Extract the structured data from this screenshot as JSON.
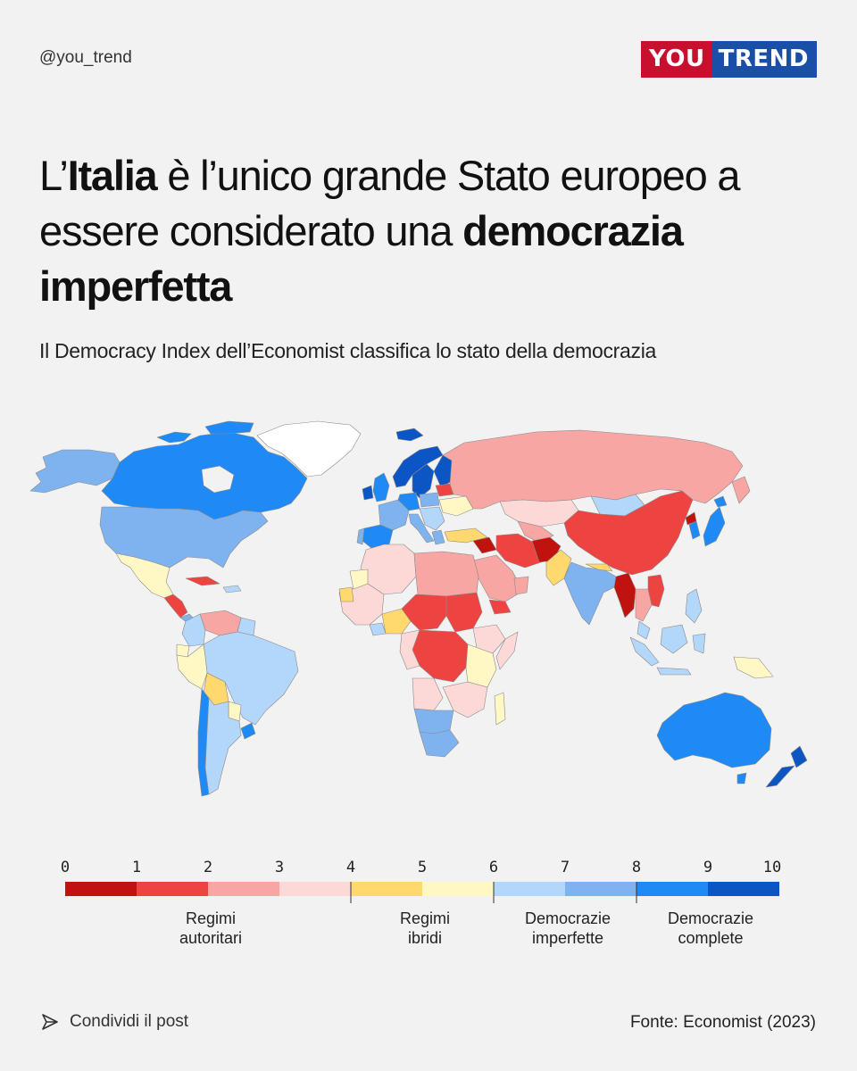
{
  "header": {
    "handle": "@you_trend",
    "logo_left": "YOU",
    "logo_right": "TREND"
  },
  "headline": {
    "part1": "L’",
    "part2": "Italia",
    "part3": " è l’unico grande Stato europeo a essere considerato una ",
    "part4": "democrazia imperfetta"
  },
  "subtitle": "Il Democracy Index dell’Economist classifica lo stato della democrazia",
  "legend": {
    "ticks": [
      "0",
      "1",
      "2",
      "3",
      "4",
      "5",
      "6",
      "7",
      "8",
      "9",
      "10"
    ],
    "bins": [
      {
        "from": 0,
        "to": 1,
        "color": "#c0120f"
      },
      {
        "from": 1,
        "to": 2,
        "color": "#ee4441"
      },
      {
        "from": 2,
        "to": 3,
        "color": "#f8a6a4"
      },
      {
        "from": 3,
        "to": 4,
        "color": "#fcd8d7"
      },
      {
        "from": 4,
        "to": 5,
        "color": "#ffd86e"
      },
      {
        "from": 5,
        "to": 6,
        "color": "#fff8c4"
      },
      {
        "from": 6,
        "to": 7,
        "color": "#b3d6fb"
      },
      {
        "from": 7,
        "to": 8,
        "color": "#7fb3ef"
      },
      {
        "from": 8,
        "to": 9,
        "color": "#1f8af5"
      },
      {
        "from": 9,
        "to": 10,
        "color": "#0b55c4"
      }
    ],
    "categories": [
      {
        "line1": "Regimi",
        "line2": "autoritari"
      },
      {
        "line1": "Regimi",
        "line2": "ibridi"
      },
      {
        "line1": "Democrazie",
        "line2": "imperfette"
      },
      {
        "line1": "Democrazie",
        "line2": "complete"
      }
    ]
  },
  "footer": {
    "share": "Condividi il post",
    "source": "Fonte: Economist (2023)"
  },
  "colors": {
    "background": "#f2f2f2",
    "no_data": "#ffffff",
    "brand_red": "#c8102e",
    "brand_blue": "#1a4fa8"
  }
}
